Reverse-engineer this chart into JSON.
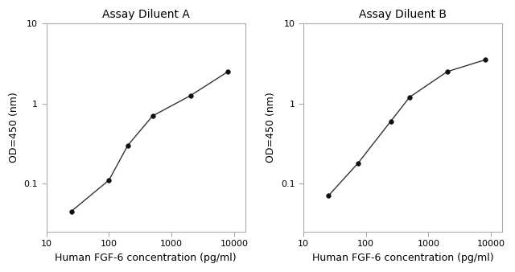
{
  "panel_A": {
    "title": "Assay Diluent A",
    "x": [
      25,
      100,
      200,
      500,
      2000,
      8000
    ],
    "y": [
      0.045,
      0.11,
      0.3,
      0.7,
      1.25,
      2.5
    ],
    "xlabel": "Human FGF-6 concentration (pg/ml)",
    "ylabel": "OD=450 (nm)",
    "xlim": [
      10,
      15000
    ],
    "ylim": [
      0.025,
      10
    ]
  },
  "panel_B": {
    "title": "Assay Diluent B",
    "x": [
      25,
      75,
      250,
      500,
      2000,
      8000
    ],
    "y": [
      0.07,
      0.18,
      0.6,
      1.2,
      2.5,
      3.5
    ],
    "xlabel": "Human FGF-6 concentration (pg/ml)",
    "ylabel": "OD=450 (nm)",
    "xlim": [
      10,
      15000
    ],
    "ylim": [
      0.025,
      10
    ]
  },
  "line_color": "#333333",
  "marker": "o",
  "marker_size": 4,
  "marker_facecolor": "#111111",
  "title_fontsize": 10,
  "label_fontsize": 9,
  "tick_fontsize": 8,
  "background_color": "#ffffff",
  "spine_color": "#aaaaaa"
}
